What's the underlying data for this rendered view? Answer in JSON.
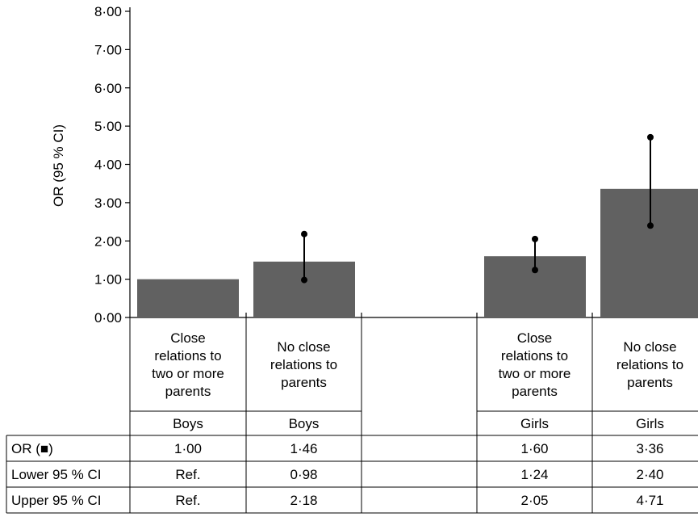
{
  "chart_data": {
    "type": "bar",
    "ylabel": "OR (95 % CI)",
    "ylim": [
      0,
      8
    ],
    "yticks": [
      "0·00",
      "1·00",
      "2·00",
      "3·00",
      "4·00",
      "5·00",
      "6·00",
      "7·00",
      "8·00"
    ],
    "grid": false,
    "bar_color": "#616161",
    "categories": [
      "Close relations to two or more parents",
      "No close relations to parents",
      "",
      "Close relations to two or more parents",
      "No close relations to parents"
    ],
    "category_lines": [
      [
        "Close",
        "relations to",
        "two or more",
        "parents"
      ],
      [
        "No close",
        "relations to",
        "parents"
      ],
      [],
      [
        "Close",
        "relations to",
        "two or more",
        "parents"
      ],
      [
        "No close",
        "relations to",
        "parents"
      ]
    ],
    "groups": [
      "Boys",
      "Boys",
      "",
      "Girls",
      "Girls"
    ],
    "values": [
      1.0,
      1.46,
      null,
      1.6,
      3.36
    ],
    "ci_lower": [
      null,
      0.98,
      null,
      1.24,
      2.4
    ],
    "ci_upper": [
      null,
      2.18,
      null,
      2.05,
      4.71
    ],
    "table": {
      "rows": [
        {
          "label": "OR (■)",
          "cells": [
            "1·00",
            "1·46",
            "",
            "1·60",
            "3·36"
          ]
        },
        {
          "label": "Lower 95 % CI",
          "cells": [
            "Ref.",
            "0·98",
            "",
            "1·24",
            "2·40"
          ]
        },
        {
          "label": "Upper 95 % CI",
          "cells": [
            "Ref.",
            "2·18",
            "",
            "2·05",
            "4·71"
          ]
        }
      ]
    }
  }
}
